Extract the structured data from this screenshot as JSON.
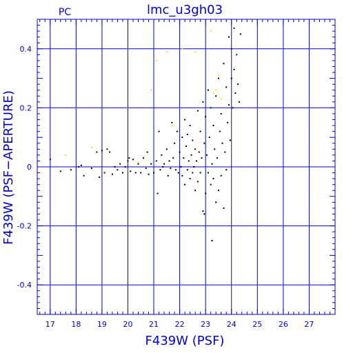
{
  "chart_data": {
    "type": "scatter",
    "title": "lmc_u3gh03",
    "corner_label": "PC",
    "xlabel": "F439W (PSF)",
    "ylabel": "F439W (PSF−APERTURE)",
    "xlim": [
      16.5,
      28
    ],
    "ylim": [
      -0.5,
      0.5
    ],
    "x_ticks": [
      17,
      18,
      19,
      20,
      21,
      22,
      23,
      24,
      25,
      26,
      27
    ],
    "y_ticks": [
      -0.4,
      -0.2,
      0,
      0.2,
      0.4
    ],
    "x_tick_labels": [
      "17",
      "18",
      "19",
      "20",
      "21",
      "22",
      "23",
      "24",
      "25",
      "26",
      "27"
    ],
    "y_tick_labels": [
      "-0.4",
      "-0.2",
      "0",
      "0.2",
      "0.4"
    ],
    "grid": true,
    "grid_color": "#0000cc",
    "series": [
      {
        "color": "#000000",
        "points": [
          [
            17.0,
            0.025
          ],
          [
            17.4,
            -0.015
          ],
          [
            17.8,
            -0.01
          ],
          [
            18.1,
            0.0
          ],
          [
            18.2,
            0.005
          ],
          [
            18.3,
            -0.03
          ],
          [
            18.6,
            -0.005
          ],
          [
            18.8,
            0.05
          ],
          [
            18.9,
            -0.035
          ],
          [
            19.0,
            0.055
          ],
          [
            19.1,
            -0.02
          ],
          [
            19.2,
            0.06
          ],
          [
            19.3,
            0.05
          ],
          [
            19.4,
            -0.025
          ],
          [
            19.5,
            0.0
          ],
          [
            19.6,
            -0.01
          ],
          [
            19.7,
            0.01
          ],
          [
            19.8,
            -0.02
          ],
          [
            19.9,
            0.0
          ],
          [
            20.0,
            0.02
          ],
          [
            20.05,
            0.03
          ],
          [
            20.1,
            -0.015
          ],
          [
            20.2,
            0.025
          ],
          [
            20.3,
            -0.02
          ],
          [
            20.4,
            0.01
          ],
          [
            20.5,
            -0.02
          ],
          [
            20.6,
            0.03
          ],
          [
            20.7,
            -0.005
          ],
          [
            20.75,
            0.05
          ],
          [
            20.8,
            -0.025
          ],
          [
            20.9,
            0.01
          ],
          [
            21.0,
            -0.02
          ],
          [
            21.1,
            0.02
          ],
          [
            21.15,
            -0.09
          ],
          [
            21.2,
            0.12
          ],
          [
            21.25,
            -0.01
          ],
          [
            21.3,
            0.04
          ],
          [
            21.35,
            0.0
          ],
          [
            21.4,
            0.01
          ],
          [
            21.5,
            0.06
          ],
          [
            21.55,
            -0.03
          ],
          [
            21.6,
            0.02
          ],
          [
            21.65,
            -0.005
          ],
          [
            21.7,
            0.15
          ],
          [
            21.75,
            0.03
          ],
          [
            21.8,
            0.08
          ],
          [
            21.85,
            -0.01
          ],
          [
            21.9,
            0.12
          ],
          [
            21.95,
            -0.02
          ],
          [
            22.0,
            0.05
          ],
          [
            22.05,
            0.0
          ],
          [
            22.1,
            0.1
          ],
          [
            22.1,
            -0.03
          ],
          [
            22.15,
            0.03
          ],
          [
            22.2,
            0.16
          ],
          [
            22.2,
            -0.06
          ],
          [
            22.25,
            0.07
          ],
          [
            22.3,
            -0.01
          ],
          [
            22.3,
            0.11
          ],
          [
            22.35,
            0.02
          ],
          [
            22.4,
            -0.04
          ],
          [
            22.4,
            0.14
          ],
          [
            22.45,
            0.04
          ],
          [
            22.5,
            -0.02
          ],
          [
            22.5,
            0.09
          ],
          [
            22.55,
            0.0
          ],
          [
            22.6,
            0.06
          ],
          [
            22.6,
            -0.08
          ],
          [
            22.65,
            0.02
          ],
          [
            22.7,
            0.19
          ],
          [
            22.7,
            -0.05
          ],
          [
            22.75,
            0.05
          ],
          [
            22.8,
            0.12
          ],
          [
            22.8,
            -0.02
          ],
          [
            22.85,
            0.03
          ],
          [
            22.9,
            0.22
          ],
          [
            22.9,
            -0.15
          ],
          [
            22.95,
            0.08
          ],
          [
            23.0,
            0.17
          ],
          [
            23.0,
            -0.09
          ],
          [
            23.05,
            0.04
          ],
          [
            23.1,
            0.26
          ],
          [
            23.1,
            -0.02
          ],
          [
            23.15,
            0.1
          ],
          [
            23.2,
            0.2
          ],
          [
            23.2,
            -0.06
          ],
          [
            23.25,
            0.01
          ],
          [
            23.3,
            0.14
          ],
          [
            23.3,
            -0.04
          ],
          [
            23.35,
            0.06
          ],
          [
            23.4,
            0.24
          ],
          [
            23.4,
            -0.12
          ],
          [
            23.45,
            0.03
          ],
          [
            23.5,
            0.3
          ],
          [
            23.5,
            -0.08
          ],
          [
            23.55,
            0.12
          ],
          [
            23.6,
            0.18
          ],
          [
            23.6,
            -0.03
          ],
          [
            23.65,
            0.08
          ],
          [
            23.7,
            0.35
          ],
          [
            23.7,
            -0.14
          ],
          [
            23.75,
            0.05
          ],
          [
            23.8,
            0.27
          ],
          [
            23.8,
            -0.01
          ],
          [
            23.85,
            0.15
          ],
          [
            23.9,
            0.44
          ],
          [
            23.9,
            0.21
          ],
          [
            23.95,
            0.09
          ],
          [
            24.0,
            0.4
          ],
          [
            24.0,
            0.3
          ],
          [
            24.05,
            0.2
          ],
          [
            24.1,
            0.47
          ],
          [
            24.1,
            0.33
          ],
          [
            24.15,
            0.25
          ],
          [
            24.2,
            0.38
          ],
          [
            24.25,
            0.28
          ],
          [
            24.3,
            0.22
          ],
          [
            24.35,
            0.45
          ],
          [
            23.25,
            -0.25
          ],
          [
            22.95,
            -0.16
          ]
        ]
      },
      {
        "color": "#ffd700",
        "points": [
          [
            17.6,
            0.04
          ],
          [
            18.6,
            0.065
          ],
          [
            20.4,
            0.015
          ],
          [
            20.9,
            0.26
          ],
          [
            21.1,
            0.36
          ],
          [
            21.5,
            0.39
          ],
          [
            21.7,
            0.14
          ],
          [
            22.1,
            0.4
          ],
          [
            22.6,
            0.39
          ],
          [
            23.2,
            0.46
          ],
          [
            23.3,
            0.25
          ],
          [
            23.4,
            0.26
          ],
          [
            23.5,
            0.31
          ],
          [
            23.6,
            0.23
          ]
        ]
      }
    ]
  }
}
